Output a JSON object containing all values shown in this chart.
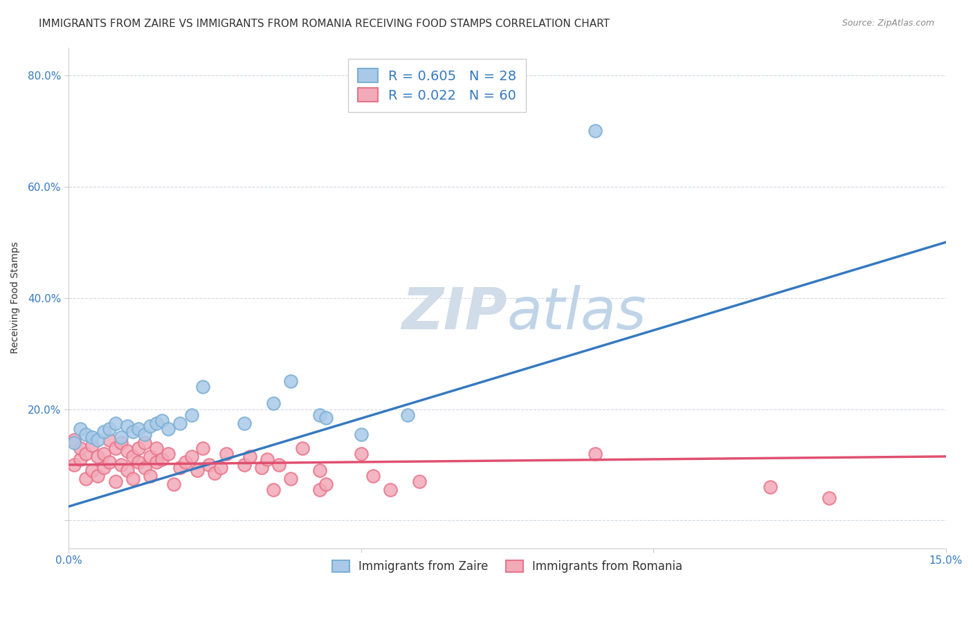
{
  "title": "IMMIGRANTS FROM ZAIRE VS IMMIGRANTS FROM ROMANIA RECEIVING FOOD STAMPS CORRELATION CHART",
  "source": "Source: ZipAtlas.com",
  "ylabel": "Receiving Food Stamps",
  "xlim": [
    0.0,
    0.15
  ],
  "ylim": [
    -0.05,
    0.85
  ],
  "x_ticks": [
    0.0,
    0.05,
    0.1,
    0.15
  ],
  "x_tick_labels": [
    "0.0%",
    "",
    "",
    "15.0%"
  ],
  "y_ticks": [
    0.0,
    0.2,
    0.4,
    0.6,
    0.8
  ],
  "y_tick_labels": [
    "",
    "20.0%",
    "40.0%",
    "60.0%",
    "80.0%"
  ],
  "zaire_color": "#7bafd4",
  "zaire_fill": "#aac9e8",
  "romania_color": "#e8748a",
  "romania_fill": "#f2aab8",
  "zaire_line_color": "#3579c0",
  "romania_line_color": "#e05070",
  "zaire_R": 0.605,
  "zaire_N": 28,
  "romania_R": 0.022,
  "romania_N": 60,
  "watermark_color": "#c8d8e8",
  "background_color": "#ffffff",
  "zaire_scatter_x": [
    0.001,
    0.002,
    0.003,
    0.004,
    0.005,
    0.006,
    0.007,
    0.008,
    0.009,
    0.01,
    0.011,
    0.012,
    0.013,
    0.014,
    0.015,
    0.016,
    0.017,
    0.019,
    0.021,
    0.023,
    0.03,
    0.035,
    0.038,
    0.043,
    0.044,
    0.05,
    0.058,
    0.09
  ],
  "zaire_scatter_y": [
    0.14,
    0.165,
    0.155,
    0.15,
    0.145,
    0.16,
    0.165,
    0.175,
    0.15,
    0.17,
    0.16,
    0.165,
    0.155,
    0.17,
    0.175,
    0.18,
    0.165,
    0.175,
    0.19,
    0.24,
    0.175,
    0.21,
    0.25,
    0.19,
    0.185,
    0.155,
    0.19,
    0.7
  ],
  "romania_scatter_x": [
    0.001,
    0.001,
    0.002,
    0.002,
    0.003,
    0.003,
    0.004,
    0.004,
    0.005,
    0.005,
    0.006,
    0.006,
    0.007,
    0.007,
    0.008,
    0.008,
    0.009,
    0.009,
    0.01,
    0.01,
    0.011,
    0.011,
    0.012,
    0.012,
    0.013,
    0.013,
    0.014,
    0.014,
    0.015,
    0.015,
    0.016,
    0.017,
    0.018,
    0.019,
    0.02,
    0.021,
    0.022,
    0.023,
    0.024,
    0.025,
    0.026,
    0.027,
    0.03,
    0.031,
    0.033,
    0.034,
    0.035,
    0.036,
    0.038,
    0.04,
    0.043,
    0.043,
    0.044,
    0.05,
    0.052,
    0.055,
    0.06,
    0.09,
    0.12,
    0.13
  ],
  "romania_scatter_y": [
    0.1,
    0.145,
    0.11,
    0.13,
    0.075,
    0.12,
    0.09,
    0.135,
    0.08,
    0.115,
    0.095,
    0.12,
    0.105,
    0.145,
    0.07,
    0.13,
    0.1,
    0.14,
    0.09,
    0.125,
    0.075,
    0.115,
    0.105,
    0.13,
    0.095,
    0.14,
    0.08,
    0.115,
    0.105,
    0.13,
    0.11,
    0.12,
    0.065,
    0.095,
    0.105,
    0.115,
    0.09,
    0.13,
    0.1,
    0.085,
    0.095,
    0.12,
    0.1,
    0.115,
    0.095,
    0.11,
    0.055,
    0.1,
    0.075,
    0.13,
    0.055,
    0.09,
    0.065,
    0.12,
    0.08,
    0.055,
    0.07,
    0.12,
    0.06,
    0.04
  ],
  "zaire_line_x0": 0.0,
  "zaire_line_y0": 0.025,
  "zaire_line_x1": 0.15,
  "zaire_line_y1": 0.5,
  "romania_line_x0": 0.0,
  "romania_line_y0": 0.1,
  "romania_line_x1": 0.15,
  "romania_line_y1": 0.115,
  "grid_color": "#d0d8e0",
  "title_fontsize": 11,
  "axis_label_fontsize": 10,
  "tick_fontsize": 11
}
